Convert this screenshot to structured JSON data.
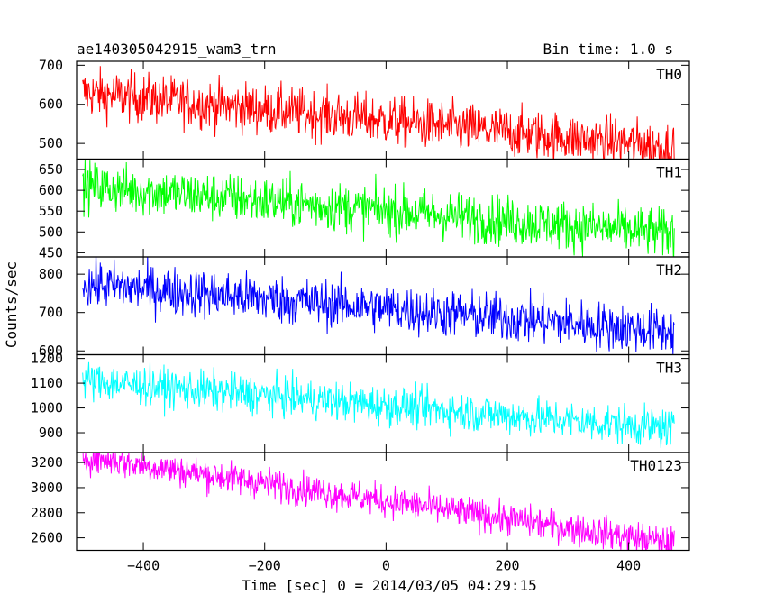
{
  "header": {
    "title": "ae140305042915_wam3_trn",
    "bin_time": "Bin time: 1.0 s"
  },
  "chart_data": {
    "type": "line",
    "xlabel": "Time [sec] 0 = 2014/03/05 04:29:15",
    "ylabel": "Counts/sec",
    "xlim": [
      -510,
      500
    ],
    "x_ticks": [
      -400,
      -200,
      0,
      200,
      400
    ],
    "x_tick_labels": [
      "−400",
      "−200",
      "0",
      "200",
      "400"
    ],
    "x_range_data": [
      -500,
      475
    ],
    "grid": false,
    "panels": [
      {
        "name": "TH0",
        "color": "#ff0000",
        "ylim": [
          460,
          710
        ],
        "y_ticks": [
          500,
          600,
          700
        ],
        "y_tick_labels": [
          "500",
          "600",
          "700"
        ],
        "trend_start": 630,
        "trend_end": 490,
        "noise": 32
      },
      {
        "name": "TH1",
        "color": "#00ff00",
        "ylim": [
          440,
          675
        ],
        "y_ticks": [
          450,
          500,
          550,
          600,
          650
        ],
        "y_tick_labels": [
          "450",
          "500",
          "550",
          "600",
          "650"
        ],
        "trend_start": 610,
        "trend_end": 495,
        "noise": 30
      },
      {
        "name": "TH2",
        "color": "#0000ff",
        "ylim": [
          590,
          845
        ],
        "y_ticks": [
          600,
          700,
          800
        ],
        "y_tick_labels": [
          "600",
          "700",
          "800"
        ],
        "trend_start": 775,
        "trend_end": 650,
        "noise": 32
      },
      {
        "name": "TH3",
        "color": "#00ffff",
        "ylim": [
          820,
          1215
        ],
        "y_ticks": [
          900,
          1000,
          1100,
          1200
        ],
        "y_tick_labels": [
          "900",
          "1000",
          "1100",
          "1200"
        ],
        "trend_start": 1110,
        "trend_end": 915,
        "noise": 40
      },
      {
        "name": "TH0123",
        "color": "#ff00ff",
        "ylim": [
          2500,
          3280
        ],
        "y_ticks": [
          2600,
          2800,
          3000,
          3200
        ],
        "y_tick_labels": [
          "2600",
          "2800",
          "3000",
          "3200"
        ],
        "trend_start": 3250,
        "trend_end": 2555,
        "noise": 65
      }
    ]
  }
}
